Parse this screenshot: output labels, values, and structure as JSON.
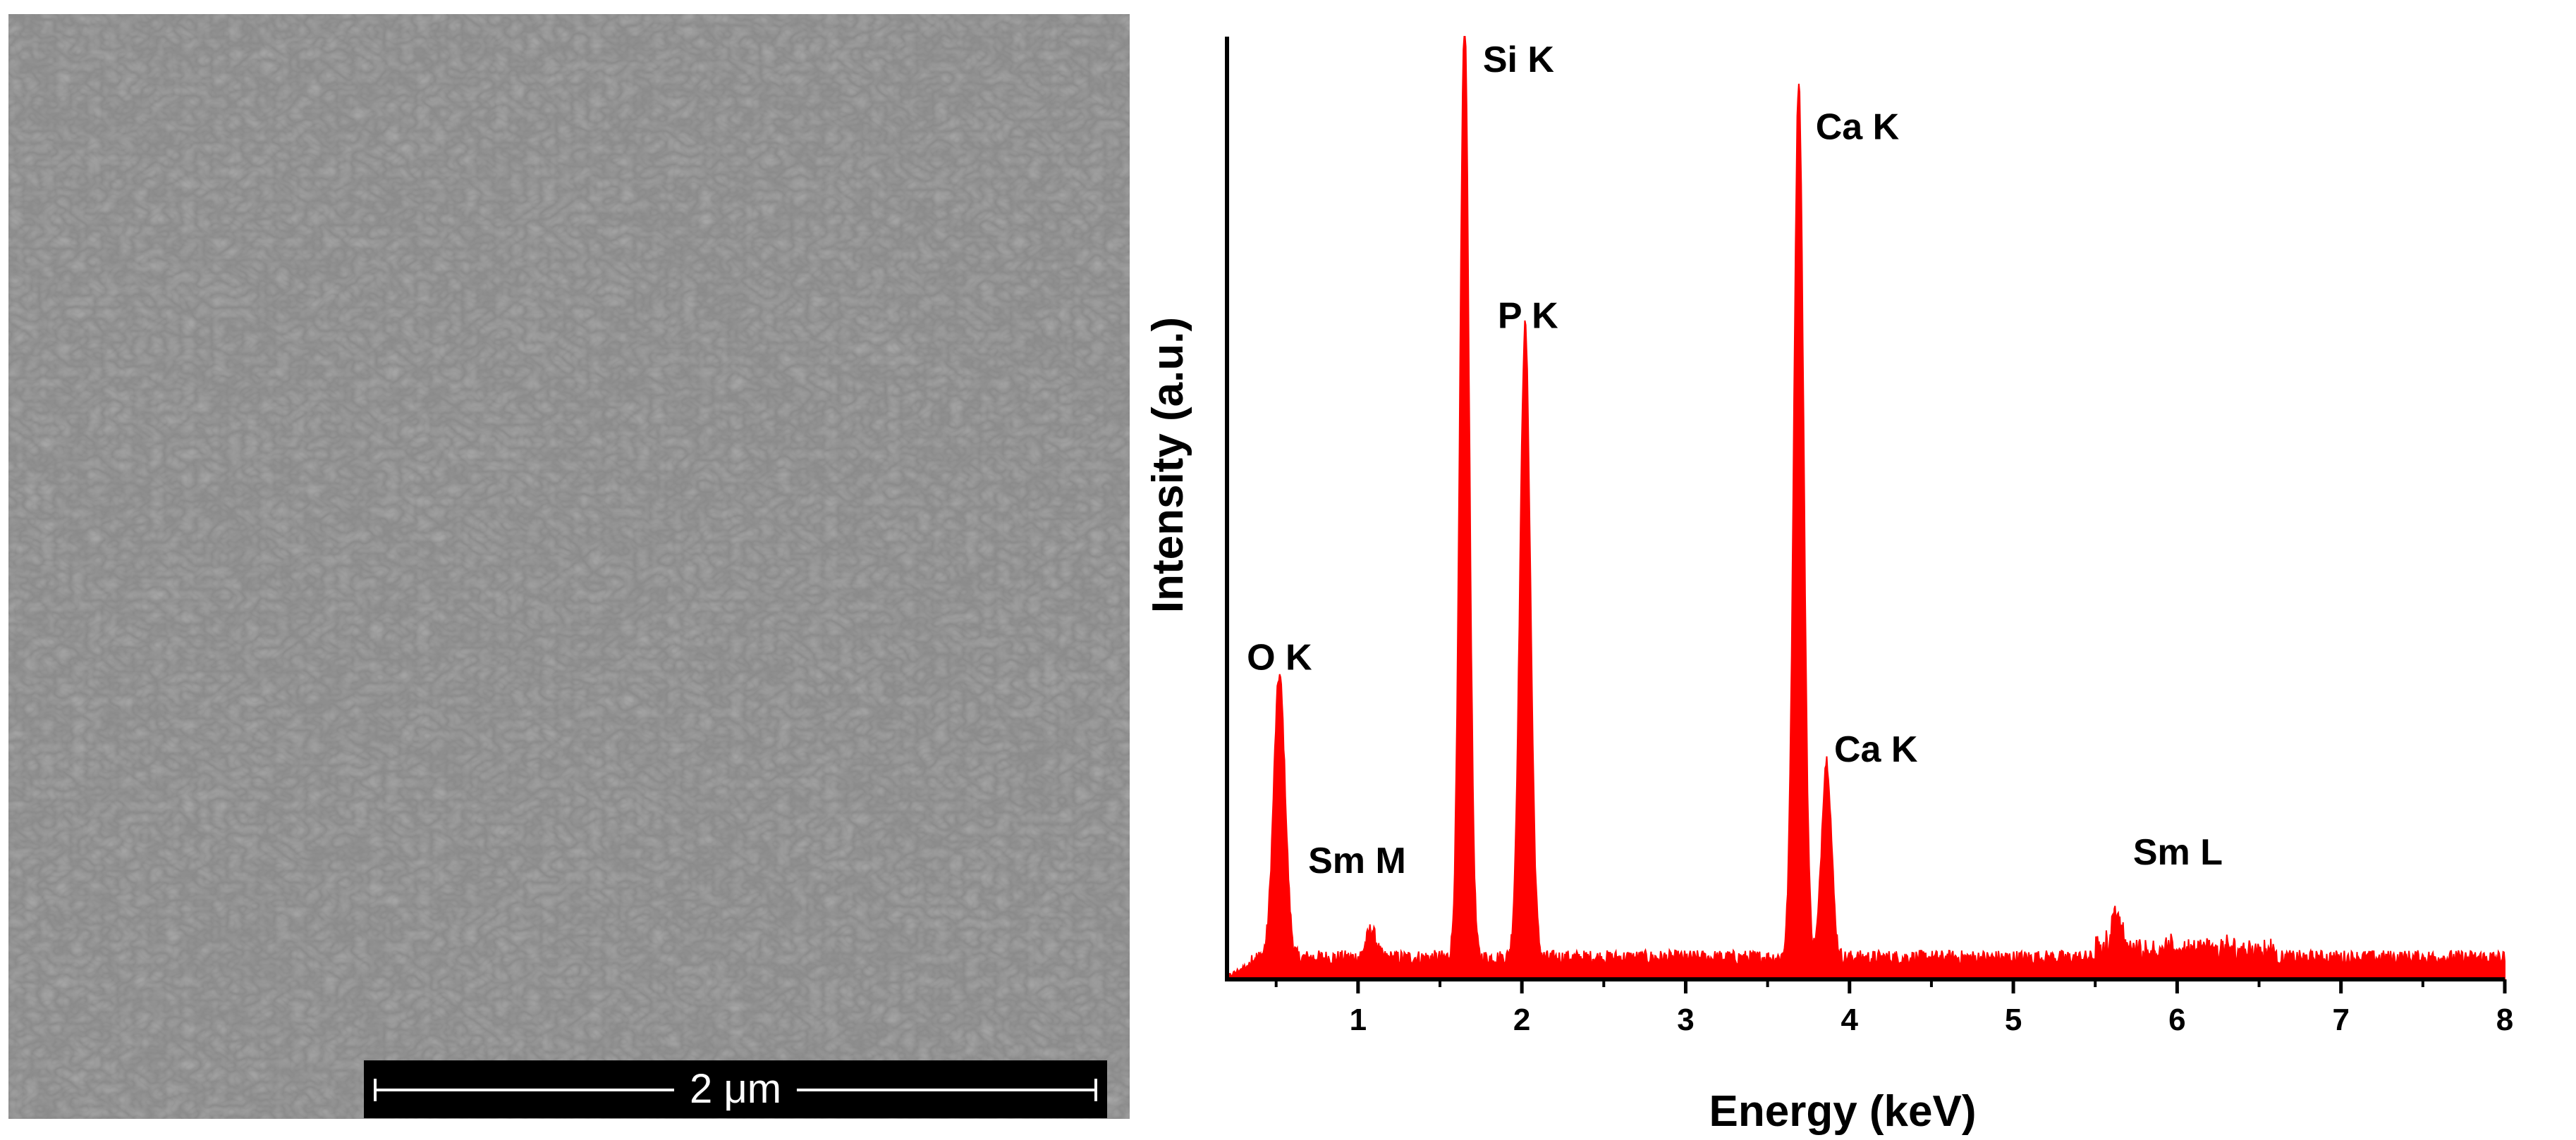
{
  "sem_image": {
    "scale_bar_label": "2 μm",
    "background_color": "#8a8a8a"
  },
  "chart_data": {
    "type": "area",
    "xlabel": "Energy (keV)",
    "ylabel": "Intensity (a.u.)",
    "xlim": [
      0.2,
      8
    ],
    "ylim": [
      0,
      100
    ],
    "x_ticks": [
      1,
      2,
      3,
      4,
      5,
      6,
      7,
      8
    ],
    "grid": false,
    "color": "#ff0000",
    "baseline": 1.5,
    "peaks": [
      {
        "label": "O K",
        "energy": 0.52,
        "height": 30
      },
      {
        "label": "Sm M",
        "energy": 1.08,
        "height": 3
      },
      {
        "label": "Si K",
        "energy": 1.65,
        "height": 100
      },
      {
        "label": "P K",
        "energy": 2.02,
        "height": 67
      },
      {
        "label": "Ca K",
        "energy": 3.69,
        "height": 93
      },
      {
        "label": "Ca K",
        "energy": 3.86,
        "height": 21
      },
      {
        "label": "Sm L",
        "energy": 5.63,
        "height": 4
      }
    ]
  }
}
